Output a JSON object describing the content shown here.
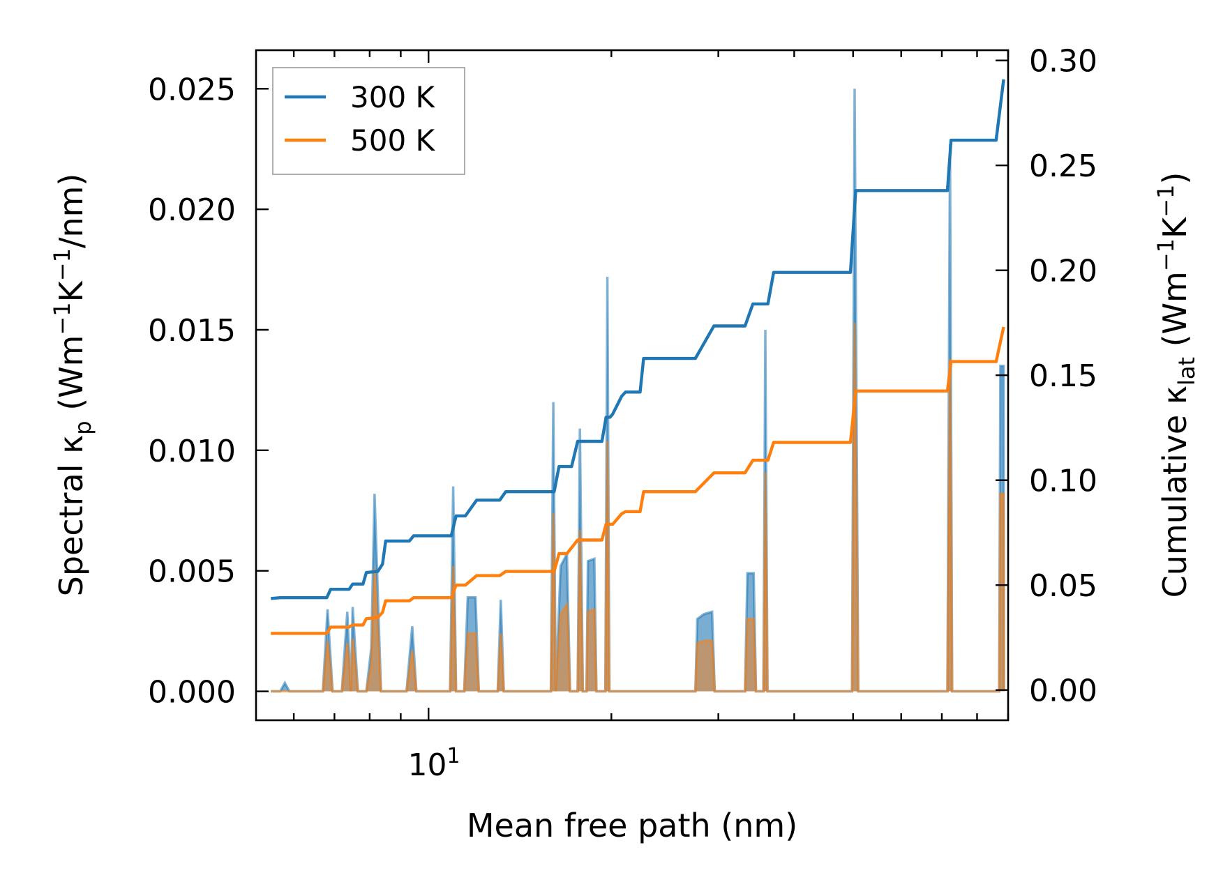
{
  "chart_data": {
    "type": "line",
    "title": "",
    "xlabel": "Mean free path (nm)",
    "xscale": "log",
    "xlim": [
      5.2,
      90
    ],
    "x_tick_label": {
      "base": "10",
      "exponent": "1"
    },
    "ylabel_left": {
      "prefix": "Spectral κ",
      "subscript": "p",
      "units": " (Wm",
      "sup1": "−1",
      "mid": "K",
      "sup2": "−1",
      "tail": "/nm)"
    },
    "ylabel_right": {
      "prefix": "Cumulative κ",
      "subscript": "lat",
      "units": " (Wm",
      "sup1": "−1",
      "mid": "K",
      "sup2": "−1",
      "tail": ")"
    },
    "ylim_left": [
      -0.0012,
      0.0266
    ],
    "ylim_right": [
      -0.0144,
      0.3049
    ],
    "yticks_left": [
      "0.000",
      "0.005",
      "0.010",
      "0.015",
      "0.020",
      "0.025"
    ],
    "yticks_right": [
      "0.00",
      "0.05",
      "0.10",
      "0.15",
      "0.20",
      "0.25",
      "0.30"
    ],
    "legend_position": "top-left",
    "series": [
      {
        "name": "300 K",
        "color": "#1f77b4",
        "axis": "right",
        "cumulative": [
          [
            5.5,
            0.0436
          ],
          [
            5.7,
            0.044
          ],
          [
            6.8,
            0.044
          ],
          [
            6.9,
            0.048
          ],
          [
            7.4,
            0.048
          ],
          [
            7.5,
            0.0505
          ],
          [
            7.8,
            0.0505
          ],
          [
            7.9,
            0.056
          ],
          [
            8.25,
            0.0565
          ],
          [
            8.4,
            0.06
          ],
          [
            8.5,
            0.071
          ],
          [
            9.3,
            0.071
          ],
          [
            9.45,
            0.0735
          ],
          [
            10.9,
            0.0735
          ],
          [
            11.1,
            0.083
          ],
          [
            11.5,
            0.083
          ],
          [
            12.0,
            0.0905
          ],
          [
            13.1,
            0.0905
          ],
          [
            13.4,
            0.0945
          ],
          [
            16.1,
            0.0945
          ],
          [
            16.4,
            0.1065
          ],
          [
            17.2,
            0.1065
          ],
          [
            17.6,
            0.1185
          ],
          [
            19.3,
            0.1185
          ],
          [
            19.6,
            0.13
          ],
          [
            19.9,
            0.13
          ],
          [
            20.1,
            0.1315
          ],
          [
            20.8,
            0.14
          ],
          [
            21.1,
            0.142
          ],
          [
            22.3,
            0.142
          ],
          [
            22.6,
            0.158
          ],
          [
            27.5,
            0.158
          ],
          [
            29.5,
            0.1735
          ],
          [
            33.2,
            0.1735
          ],
          [
            34.2,
            0.184
          ],
          [
            36.2,
            0.184
          ],
          [
            37.0,
            0.199
          ],
          [
            49.5,
            0.199
          ],
          [
            50.5,
            0.238
          ],
          [
            71.5,
            0.238
          ],
          [
            72.5,
            0.262
          ],
          [
            86.0,
            0.262
          ],
          [
            88.5,
            0.291
          ]
        ],
        "spectral": [
          [
            5.5,
            0.0
          ],
          [
            5.7,
            0.0
          ],
          [
            5.8,
            0.00035
          ],
          [
            5.9,
            0.0
          ],
          [
            6.7,
            0.0
          ],
          [
            6.82,
            0.0034
          ],
          [
            6.95,
            0.0
          ],
          [
            7.2,
            0.0
          ],
          [
            7.35,
            0.0033
          ],
          [
            7.45,
            0.0
          ],
          [
            7.5,
            0.0035
          ],
          [
            7.65,
            0.0
          ],
          [
            7.9,
            0.0
          ],
          [
            8.05,
            0.0018
          ],
          [
            8.15,
            0.0082
          ],
          [
            8.35,
            0.0
          ],
          [
            9.2,
            0.0
          ],
          [
            9.4,
            0.0027
          ],
          [
            9.55,
            0.0
          ],
          [
            10.85,
            0.0
          ],
          [
            10.98,
            0.0085
          ],
          [
            11.1,
            0.0
          ],
          [
            11.45,
            0.0
          ],
          [
            11.6,
            0.0039
          ],
          [
            11.95,
            0.0039
          ],
          [
            12.1,
            0.0
          ],
          [
            13.0,
            0.0
          ],
          [
            13.15,
            0.0038
          ],
          [
            13.3,
            0.0
          ],
          [
            15.9,
            0.0
          ],
          [
            16.05,
            0.012
          ],
          [
            16.2,
            0.0
          ],
          [
            16.5,
            0.0052
          ],
          [
            16.9,
            0.0057
          ],
          [
            17.1,
            0.0
          ],
          [
            17.6,
            0.0
          ],
          [
            17.75,
            0.0109
          ],
          [
            17.95,
            0.0
          ],
          [
            18.2,
            0.0
          ],
          [
            18.3,
            0.0054
          ],
          [
            18.75,
            0.0055
          ],
          [
            18.9,
            0.0
          ],
          [
            19.55,
            0.0
          ],
          [
            19.7,
            0.0172
          ],
          [
            19.85,
            0.0
          ],
          [
            27.5,
            0.0
          ],
          [
            27.7,
            0.003
          ],
          [
            28.4,
            0.0032
          ],
          [
            29.3,
            0.0033
          ],
          [
            29.6,
            0.0
          ],
          [
            33.2,
            0.0
          ],
          [
            33.5,
            0.0049
          ],
          [
            34.3,
            0.0049
          ],
          [
            34.6,
            0.0
          ],
          [
            35.6,
            0.0
          ],
          [
            35.85,
            0.015
          ],
          [
            36.15,
            0.0
          ],
          [
            49.8,
            0.0
          ],
          [
            50.3,
            0.025
          ],
          [
            51.0,
            0.0
          ],
          [
            71.5,
            0.0
          ],
          [
            72.2,
            0.0227
          ],
          [
            72.8,
            0.0
          ],
          [
            87.0,
            0.0
          ],
          [
            87.4,
            0.0135
          ],
          [
            88.5,
            0.0135
          ],
          [
            88.6,
            0.0
          ]
        ]
      },
      {
        "name": "500 K",
        "color": "#ff7f0e",
        "axis": "right",
        "cumulative": [
          [
            5.5,
            0.027
          ],
          [
            5.7,
            0.027
          ],
          [
            6.8,
            0.027
          ],
          [
            6.9,
            0.03
          ],
          [
            7.4,
            0.03
          ],
          [
            7.5,
            0.031
          ],
          [
            7.8,
            0.031
          ],
          [
            7.9,
            0.034
          ],
          [
            8.25,
            0.0345
          ],
          [
            8.4,
            0.037
          ],
          [
            8.5,
            0.0425
          ],
          [
            9.3,
            0.0425
          ],
          [
            9.45,
            0.044
          ],
          [
            10.9,
            0.044
          ],
          [
            11.1,
            0.05
          ],
          [
            11.5,
            0.05
          ],
          [
            12.0,
            0.0545
          ],
          [
            13.1,
            0.0545
          ],
          [
            13.4,
            0.0565
          ],
          [
            16.1,
            0.0565
          ],
          [
            16.4,
            0.065
          ],
          [
            16.9,
            0.065
          ],
          [
            17.6,
            0.0715
          ],
          [
            19.3,
            0.0715
          ],
          [
            19.6,
            0.079
          ],
          [
            20.1,
            0.079
          ],
          [
            20.8,
            0.084
          ],
          [
            21.1,
            0.085
          ],
          [
            22.3,
            0.085
          ],
          [
            22.6,
            0.0945
          ],
          [
            27.5,
            0.0945
          ],
          [
            29.5,
            0.1035
          ],
          [
            33.2,
            0.1035
          ],
          [
            34.2,
            0.1095
          ],
          [
            36.2,
            0.1095
          ],
          [
            37.0,
            0.118
          ],
          [
            49.5,
            0.118
          ],
          [
            50.5,
            0.1425
          ],
          [
            71.5,
            0.1425
          ],
          [
            72.5,
            0.1565
          ],
          [
            86.0,
            0.1565
          ],
          [
            88.5,
            0.173
          ]
        ],
        "spectral": [
          [
            5.5,
            0.0
          ],
          [
            6.7,
            0.0
          ],
          [
            6.82,
            0.0021
          ],
          [
            6.95,
            0.0
          ],
          [
            7.2,
            0.0
          ],
          [
            7.35,
            0.002
          ],
          [
            7.45,
            0.0
          ],
          [
            7.5,
            0.0022
          ],
          [
            7.65,
            0.0
          ],
          [
            7.9,
            0.0
          ],
          [
            8.05,
            0.0011
          ],
          [
            8.15,
            0.0051
          ],
          [
            8.35,
            0.0
          ],
          [
            9.2,
            0.0
          ],
          [
            9.4,
            0.0017
          ],
          [
            9.55,
            0.0
          ],
          [
            10.85,
            0.0
          ],
          [
            10.98,
            0.0052
          ],
          [
            11.1,
            0.0
          ],
          [
            11.45,
            0.0
          ],
          [
            11.6,
            0.0024
          ],
          [
            11.95,
            0.0024
          ],
          [
            12.1,
            0.0
          ],
          [
            13.0,
            0.0
          ],
          [
            13.15,
            0.0024
          ],
          [
            13.3,
            0.0
          ],
          [
            15.9,
            0.0
          ],
          [
            16.05,
            0.0074
          ],
          [
            16.2,
            0.0
          ],
          [
            16.5,
            0.0032
          ],
          [
            16.9,
            0.0036
          ],
          [
            17.1,
            0.0
          ],
          [
            17.6,
            0.0
          ],
          [
            17.75,
            0.0067
          ],
          [
            17.95,
            0.0
          ],
          [
            18.2,
            0.0
          ],
          [
            18.3,
            0.0033
          ],
          [
            18.75,
            0.0034
          ],
          [
            18.9,
            0.0
          ],
          [
            19.55,
            0.0
          ],
          [
            19.7,
            0.0104
          ],
          [
            19.85,
            0.0
          ],
          [
            27.5,
            0.0
          ],
          [
            27.7,
            0.002
          ],
          [
            28.4,
            0.0021
          ],
          [
            29.3,
            0.0021
          ],
          [
            29.6,
            0.0
          ],
          [
            33.2,
            0.0
          ],
          [
            33.5,
            0.003
          ],
          [
            34.3,
            0.003
          ],
          [
            34.6,
            0.0
          ],
          [
            35.6,
            0.0
          ],
          [
            35.85,
            0.0091
          ],
          [
            36.15,
            0.0
          ],
          [
            49.8,
            0.0
          ],
          [
            50.3,
            0.0153
          ],
          [
            51.0,
            0.0
          ],
          [
            71.5,
            0.0
          ],
          [
            72.2,
            0.0138
          ],
          [
            72.8,
            0.0
          ],
          [
            87.0,
            0.0
          ],
          [
            87.4,
            0.0082
          ],
          [
            88.5,
            0.0082
          ],
          [
            88.6,
            0.0
          ]
        ]
      }
    ]
  }
}
